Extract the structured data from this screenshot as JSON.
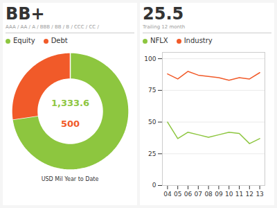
{
  "chart_data": [
    {
      "type": "donut",
      "title": "BB+",
      "subtitle": "AAA / AA / A / BBB / BB / B / CCC / CC /",
      "categories": [
        "Equity",
        "Debt"
      ],
      "values": [
        1333.6,
        500
      ],
      "value_labels": [
        "1,333.6",
        "500"
      ],
      "colors": [
        "#8dc63f",
        "#f15a29"
      ],
      "data_labels": true,
      "legend": "top",
      "annotations": [
        "USD Mil Year to Date"
      ]
    },
    {
      "type": "line",
      "title": "25.5",
      "subtitle": "Trailing 12 month",
      "x": [
        4,
        5,
        6,
        7,
        8,
        9,
        10,
        11,
        12,
        13
      ],
      "series": [
        {
          "name": "NFLX",
          "color": "#8dc63f",
          "values": [
            50,
            37,
            42,
            40,
            38,
            40,
            42,
            41,
            33,
            37
          ]
        },
        {
          "name": "Industry",
          "color": "#f15a29",
          "values": [
            88,
            84,
            90,
            87,
            86,
            85,
            83,
            85,
            84,
            89
          ]
        }
      ],
      "xlim": [
        3.5,
        13.5
      ],
      "xticks": [
        {
          "value": 4,
          "label": "04"
        },
        {
          "value": 5,
          "label": "05"
        },
        {
          "value": 6,
          "label": "06"
        },
        {
          "value": 7,
          "label": "07"
        },
        {
          "value": 8,
          "label": "08"
        },
        {
          "value": 9,
          "label": "09"
        },
        10,
        11,
        12,
        13
      ],
      "ylim": [
        0,
        105
      ],
      "yticks": [
        0,
        25,
        50,
        75,
        100
      ],
      "grid": true,
      "legend": "top"
    }
  ]
}
